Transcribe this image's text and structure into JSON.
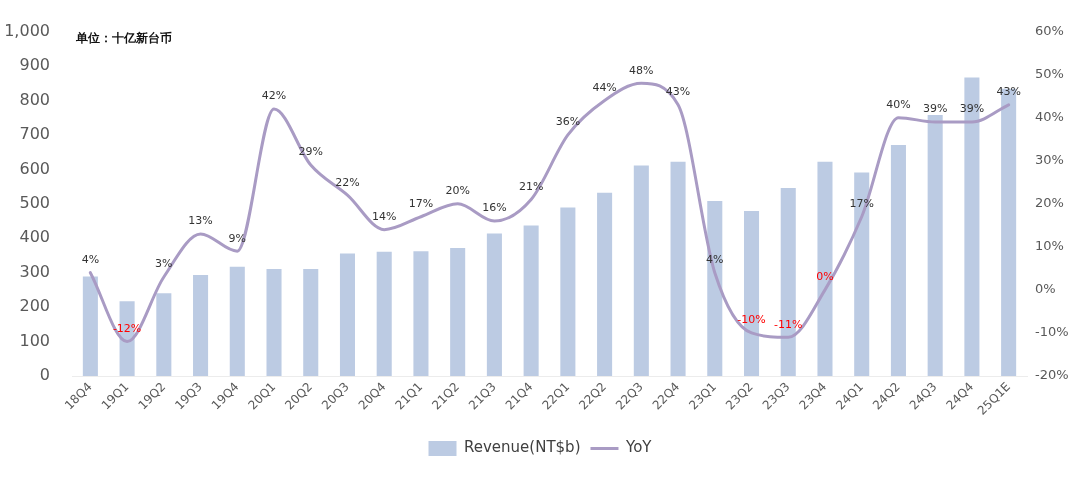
{
  "chart_data": {
    "type": "bar",
    "categories": [
      "18Q4",
      "19Q1",
      "19Q2",
      "19Q3",
      "19Q4",
      "20Q1",
      "20Q2",
      "20Q3",
      "20Q4",
      "21Q1",
      "21Q2",
      "21Q3",
      "21Q4",
      "22Q1",
      "22Q2",
      "22Q3",
      "22Q4",
      "23Q1",
      "23Q2",
      "23Q3",
      "23Q4",
      "24Q1",
      "24Q2",
      "24Q3",
      "24Q4",
      "25Q1E"
    ],
    "series": [
      {
        "name": "Revenue(NT$b)",
        "color": "#bccbe3",
        "values": [
          289,
          217,
          240,
          293,
          317,
          311,
          311,
          356,
          361,
          362,
          372,
          414,
          437,
          489,
          532,
          611,
          622,
          508,
          479,
          546,
          622,
          591,
          671,
          758,
          867,
          834
        ]
      },
      {
        "name": "YoY",
        "type": "line",
        "axis": "y2",
        "color": "#a99bc4",
        "values": [
          4,
          -12,
          3,
          13,
          9,
          42,
          29,
          22,
          14,
          17,
          20,
          16,
          21,
          36,
          44,
          48,
          43,
          4,
          -10,
          -11,
          0,
          17,
          40,
          39,
          39,
          43
        ],
        "value_labels": [
          "4%",
          "-12%",
          "3%",
          "13%",
          "9%",
          "42%",
          "29%",
          "22%",
          "14%",
          "17%",
          "20%",
          "16%",
          "21%",
          "36%",
          "44%",
          "48%",
          "43%",
          "4%",
          "-10%",
          "-11%",
          "0%",
          "17%",
          "40%",
          "39%",
          "39%",
          "43%"
        ]
      }
    ],
    "ylim": [
      0,
      1000
    ],
    "yticks": [
      0,
      100,
      200,
      300,
      400,
      500,
      600,
      700,
      800,
      900,
      {
        "value": 1000,
        "label": "1,000"
      }
    ],
    "y2lim": [
      -20,
      60
    ],
    "y2ticks": [
      {
        "value": -20,
        "label": "-20%"
      },
      {
        "value": -10,
        "label": "-10%"
      },
      {
        "value": 0,
        "label": "0%"
      },
      {
        "value": 10,
        "label": "10%"
      },
      {
        "value": 20,
        "label": "20%"
      },
      {
        "value": 30,
        "label": "30%"
      },
      {
        "value": 40,
        "label": "40%"
      },
      {
        "value": 50,
        "label": "50%"
      },
      {
        "value": 60,
        "label": "60%"
      }
    ],
    "annotations": [
      "单位：十亿新台币"
    ],
    "legend": "bottom",
    "marker": "none"
  }
}
